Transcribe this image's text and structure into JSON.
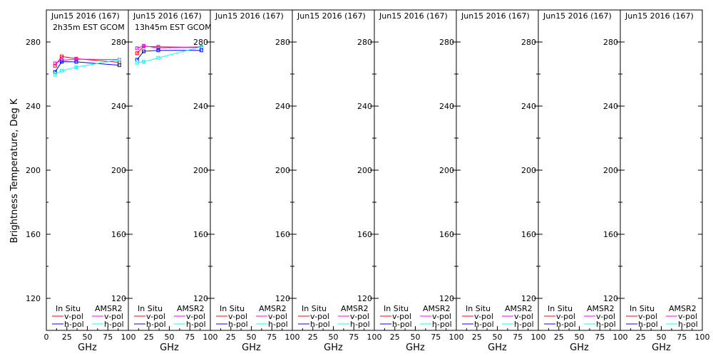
{
  "chart_data": {
    "type": "line",
    "ylabel": "Brightness Temperature, Deg K",
    "xlabel": "GHz",
    "ylim": [
      100,
      300
    ],
    "xlim": [
      0,
      100
    ],
    "yticks": [
      120,
      160,
      200,
      240,
      280
    ],
    "xticks": [
      0,
      25,
      50,
      75,
      100
    ],
    "legend": {
      "group1": "In Situ",
      "group2": "AMSR2",
      "v_label": "v-pol",
      "h_label": "h-pol"
    },
    "colors": {
      "insitu_v": "#ff0000",
      "insitu_h": "#0000ff",
      "amsr2_v": "#ff00ff",
      "amsr2_h": "#00ffff"
    },
    "panels": [
      {
        "title": "Jun15 2016 (167)",
        "subtitle": "2h35m EST GCOM",
        "x": [
          10.65,
          18.7,
          36.5,
          89
        ],
        "series": [
          {
            "key": "insitu_v",
            "values": [
              265.2,
              271.0,
              269.6,
              267.3
            ]
          },
          {
            "key": "amsr2_v",
            "values": [
              266.7,
              268.6,
              269.3,
              269.0
            ]
          },
          {
            "key": "insitu_h",
            "values": [
              261.3,
              267.7,
              267.6,
              265.5
            ]
          },
          {
            "key": "amsr2_h",
            "values": [
              259.7,
              262.1,
              264.3,
              269.0
            ]
          }
        ]
      },
      {
        "title": "Jun15 2016 (167)",
        "subtitle": "13h45m EST GCOM",
        "x": [
          10.65,
          18.7,
          36.5,
          89
        ],
        "series": [
          {
            "key": "insitu_v",
            "values": [
              273.0,
              277.3,
              277.0,
              276.6
            ]
          },
          {
            "key": "amsr2_v",
            "values": [
              276.1,
              277.6,
              276.3,
              277.0
            ]
          },
          {
            "key": "insitu_h",
            "values": [
              268.9,
              274.2,
              274.8,
              274.8
            ]
          },
          {
            "key": "amsr2_h",
            "values": [
              267.1,
              267.7,
              270.1,
              277.0
            ]
          }
        ]
      },
      {
        "title": "Jun15 2016 (167)",
        "subtitle": "",
        "x": [],
        "series": []
      },
      {
        "title": "Jun15 2016 (167)",
        "subtitle": "",
        "x": [],
        "series": []
      },
      {
        "title": "Jun15 2016 (167)",
        "subtitle": "",
        "x": [],
        "series": []
      },
      {
        "title": "Jun15 2016 (167)",
        "subtitle": "",
        "x": [],
        "series": []
      },
      {
        "title": "Jun15 2016 (167)",
        "subtitle": "",
        "x": [],
        "series": []
      },
      {
        "title": "Jun15 2016 (167)",
        "subtitle": "",
        "x": [],
        "series": []
      }
    ]
  }
}
